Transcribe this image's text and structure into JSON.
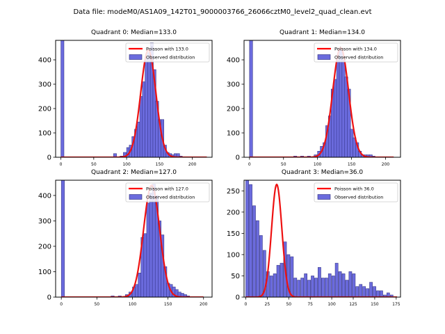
{
  "figure": {
    "title": "Data file: modeM0/AS1A09_142T01_9000003766_26066cztM0_level2_quad_clean.evt"
  },
  "chart_data": [
    {
      "type": "bar",
      "title": "Quadrant 0: Median=133.0",
      "xlim": [
        -8,
        230
      ],
      "ylim": [
        0,
        480
      ],
      "xticks": [
        0,
        50,
        100,
        150,
        200
      ],
      "yticks": [
        0,
        100,
        200,
        300,
        400
      ],
      "bin_width": 4.7,
      "bins": [
        [
          0,
          480
        ],
        [
          80,
          15
        ],
        [
          90,
          5
        ],
        [
          95,
          20
        ],
        [
          100,
          40
        ],
        [
          104,
          50
        ],
        [
          108,
          85
        ],
        [
          112,
          115
        ],
        [
          116,
          145
        ],
        [
          120,
          250
        ],
        [
          124,
          310
        ],
        [
          128,
          410
        ],
        [
          132,
          430
        ],
        [
          136,
          470
        ],
        [
          140,
          360
        ],
        [
          144,
          230
        ],
        [
          148,
          155
        ],
        [
          152,
          155
        ],
        [
          156,
          50
        ],
        [
          160,
          20
        ],
        [
          164,
          15
        ],
        [
          168,
          10
        ],
        [
          172,
          15
        ],
        [
          176,
          15
        ],
        [
          180,
          5
        ]
      ],
      "legend": [
        {
          "label": "Poisson with 133.0",
          "color": "#ff0000",
          "kind": "line"
        },
        {
          "label": "Observed distribution",
          "color": "#6b6bdd",
          "kind": "patch"
        }
      ],
      "poisson": {
        "mean": 133.0,
        "peak": 440,
        "sigma": 11.5,
        "x_range": [
          0,
          222
        ]
      }
    },
    {
      "type": "bar",
      "title": "Quadrant 1: Median=134.0",
      "xlim": [
        -8,
        222
      ],
      "ylim": [
        0,
        480
      ],
      "xticks": [
        0,
        50,
        100,
        150,
        200
      ],
      "yticks": [
        0,
        100,
        200,
        300,
        400
      ],
      "bin_width": 4.6,
      "bins": [
        [
          0,
          480
        ],
        [
          65,
          5
        ],
        [
          75,
          5
        ],
        [
          85,
          5
        ],
        [
          95,
          10
        ],
        [
          100,
          25
        ],
        [
          104,
          45
        ],
        [
          108,
          60
        ],
        [
          112,
          130
        ],
        [
          116,
          170
        ],
        [
          120,
          280
        ],
        [
          124,
          320
        ],
        [
          128,
          400
        ],
        [
          132,
          440
        ],
        [
          136,
          400
        ],
        [
          140,
          330
        ],
        [
          144,
          280
        ],
        [
          148,
          115
        ],
        [
          152,
          80
        ],
        [
          156,
          60
        ],
        [
          160,
          25
        ],
        [
          164,
          10
        ],
        [
          168,
          10
        ],
        [
          172,
          10
        ],
        [
          176,
          10
        ],
        [
          180,
          5
        ]
      ],
      "legend": [
        {
          "label": "Poisson with 134.0",
          "color": "#ff0000",
          "kind": "line"
        },
        {
          "label": "Observed distribution",
          "color": "#6b6bdd",
          "kind": "patch"
        }
      ],
      "poisson": {
        "mean": 134.0,
        "peak": 450,
        "sigma": 11.6,
        "x_range": [
          0,
          212
        ]
      }
    },
    {
      "type": "bar",
      "title": "Quadrant 2: Median=127.0",
      "xlim": [
        -8,
        212
      ],
      "ylim": [
        0,
        460
      ],
      "xticks": [
        0,
        50,
        100,
        150,
        200
      ],
      "yticks": [
        0,
        100,
        200,
        300,
        400
      ],
      "bin_width": 4.4,
      "bins": [
        [
          0,
          460
        ],
        [
          70,
          5
        ],
        [
          80,
          5
        ],
        [
          90,
          10
        ],
        [
          95,
          20
        ],
        [
          100,
          40
        ],
        [
          104,
          50
        ],
        [
          108,
          95
        ],
        [
          112,
          235
        ],
        [
          116,
          250
        ],
        [
          120,
          370
        ],
        [
          124,
          410
        ],
        [
          128,
          445
        ],
        [
          132,
          400
        ],
        [
          136,
          300
        ],
        [
          140,
          245
        ],
        [
          144,
          120
        ],
        [
          148,
          55
        ],
        [
          152,
          50
        ],
        [
          156,
          40
        ],
        [
          160,
          30
        ],
        [
          164,
          20
        ],
        [
          168,
          15
        ],
        [
          172,
          10
        ],
        [
          176,
          5
        ]
      ],
      "legend": [
        {
          "label": "Poisson with 127.0",
          "color": "#ff0000",
          "kind": "line"
        },
        {
          "label": "Observed distribution",
          "color": "#6b6bdd",
          "kind": "patch"
        }
      ],
      "poisson": {
        "mean": 127.0,
        "peak": 440,
        "sigma": 11.3,
        "x_range": [
          0,
          200
        ]
      }
    },
    {
      "type": "bar",
      "title": "Quadrant 3: Median=36.0",
      "xlim": [
        -2,
        180
      ],
      "ylim": [
        0,
        275
      ],
      "xticks": [
        0,
        25,
        50,
        75,
        100,
        125,
        150,
        175
      ],
      "yticks": [
        0,
        50,
        100,
        150,
        200,
        250
      ],
      "bin_width": 3.4,
      "bins": [
        [
          0,
          275
        ],
        [
          4,
          265
        ],
        [
          8,
          215
        ],
        [
          12,
          180
        ],
        [
          16,
          145
        ],
        [
          20,
          110
        ],
        [
          24,
          60
        ],
        [
          28,
          50
        ],
        [
          32,
          55
        ],
        [
          36,
          75
        ],
        [
          40,
          80
        ],
        [
          44,
          130
        ],
        [
          48,
          100
        ],
        [
          52,
          95
        ],
        [
          56,
          45
        ],
        [
          60,
          40
        ],
        [
          64,
          45
        ],
        [
          68,
          55
        ],
        [
          72,
          40
        ],
        [
          76,
          50
        ],
        [
          80,
          45
        ],
        [
          84,
          70
        ],
        [
          88,
          45
        ],
        [
          92,
          45
        ],
        [
          96,
          55
        ],
        [
          100,
          50
        ],
        [
          104,
          80
        ],
        [
          108,
          60
        ],
        [
          112,
          55
        ],
        [
          116,
          40
        ],
        [
          120,
          60
        ],
        [
          124,
          55
        ],
        [
          128,
          25
        ],
        [
          132,
          30
        ],
        [
          136,
          25
        ],
        [
          140,
          20
        ],
        [
          144,
          35
        ],
        [
          148,
          25
        ],
        [
          152,
          15
        ],
        [
          156,
          15
        ],
        [
          160,
          5
        ],
        [
          164,
          10
        ],
        [
          168,
          5
        ]
      ],
      "legend": [
        {
          "label": "Poisson with 36.0",
          "color": "#ff0000",
          "kind": "line"
        },
        {
          "label": "Observed distribution",
          "color": "#6b6bdd",
          "kind": "patch"
        }
      ],
      "poisson": {
        "mean": 36.0,
        "peak": 265,
        "sigma": 6.0,
        "x_range": [
          0,
          176
        ]
      }
    }
  ]
}
